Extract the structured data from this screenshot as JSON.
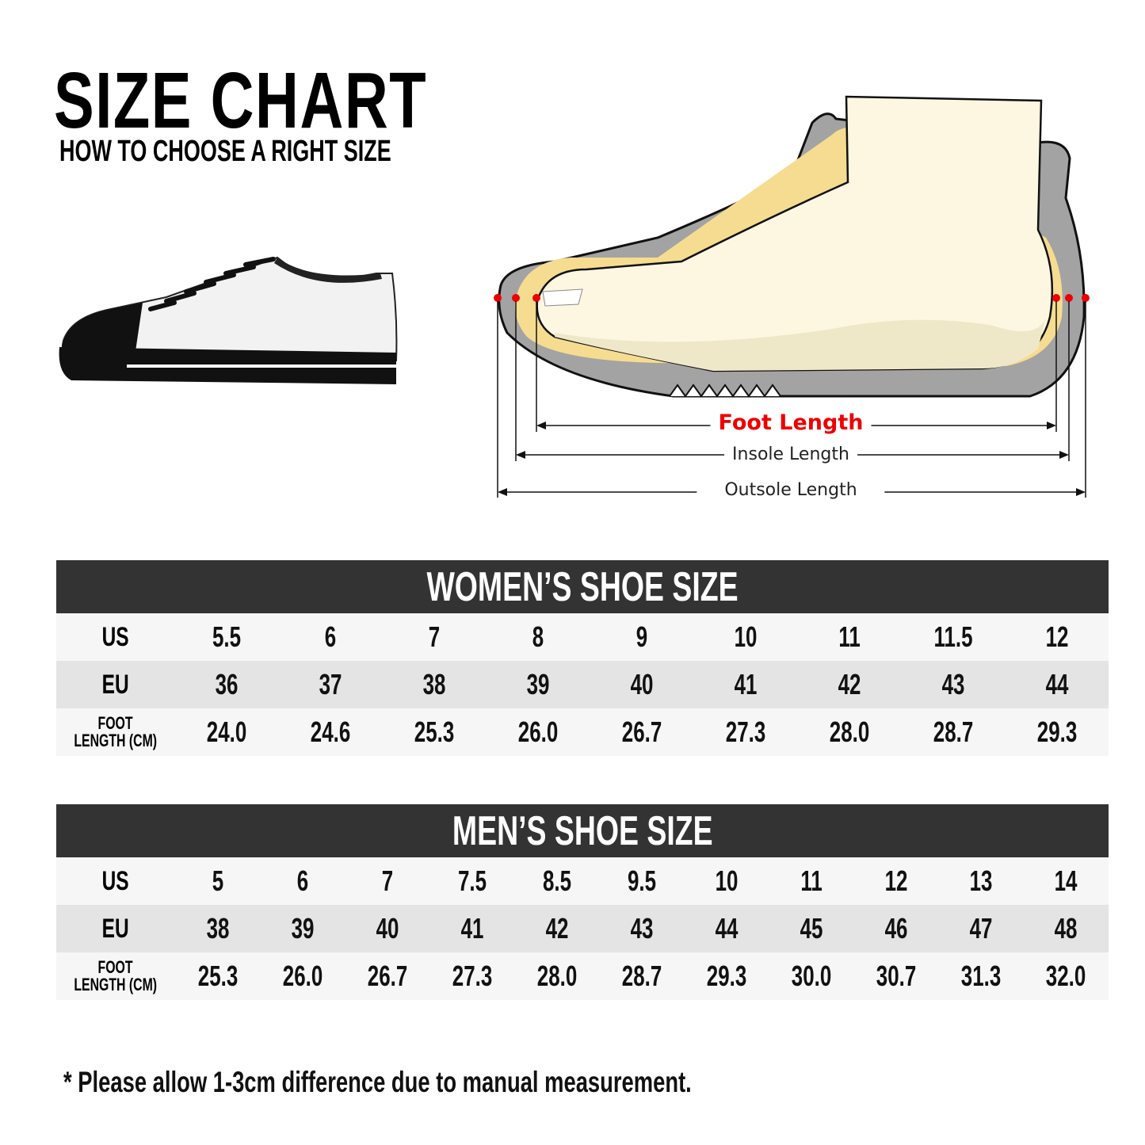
{
  "header": {
    "title": "SIZE CHART",
    "subtitle": "HOW TO CHOOSE A RIGHT SIZE"
  },
  "diagram": {
    "foot_length": "Foot Length",
    "insole_length": "Insole Length",
    "outsole_length": "Outsole Length",
    "accent_color": "#e00000"
  },
  "women": {
    "title": "WOMEN’S SHOE SIZE",
    "rows": [
      {
        "label": "US",
        "values": [
          "5.5",
          "6",
          "7",
          "8",
          "9",
          "10",
          "11",
          "11.5",
          "12"
        ]
      },
      {
        "label": "EU",
        "values": [
          "36",
          "37",
          "38",
          "39",
          "40",
          "41",
          "42",
          "43",
          "44"
        ]
      },
      {
        "label": "FOOT LENGTH (CM)",
        "label_line1": "FOOT",
        "label_line2": "LENGTH (CM)",
        "values": [
          "24.0",
          "24.6",
          "25.3",
          "26.0",
          "26.7",
          "27.3",
          "28.0",
          "28.7",
          "29.3"
        ]
      }
    ]
  },
  "men": {
    "title": "MEN’S SHOE SIZE",
    "rows": [
      {
        "label": "US",
        "values": [
          "5",
          "6",
          "7",
          "7.5",
          "8.5",
          "9.5",
          "10",
          "11",
          "12",
          "13",
          "14"
        ]
      },
      {
        "label": "EU",
        "values": [
          "38",
          "39",
          "40",
          "41",
          "42",
          "43",
          "44",
          "45",
          "46",
          "47",
          "48"
        ]
      },
      {
        "label": "FOOT LENGTH (CM)",
        "label_line1": "FOOT",
        "label_line2": "LENGTH (CM)",
        "values": [
          "25.3",
          "26.0",
          "26.7",
          "27.3",
          "28.0",
          "28.7",
          "29.3",
          "30.0",
          "30.7",
          "31.3",
          "32.0"
        ]
      }
    ]
  },
  "footnote": "* Please allow 1-3cm difference due to manual measurement."
}
